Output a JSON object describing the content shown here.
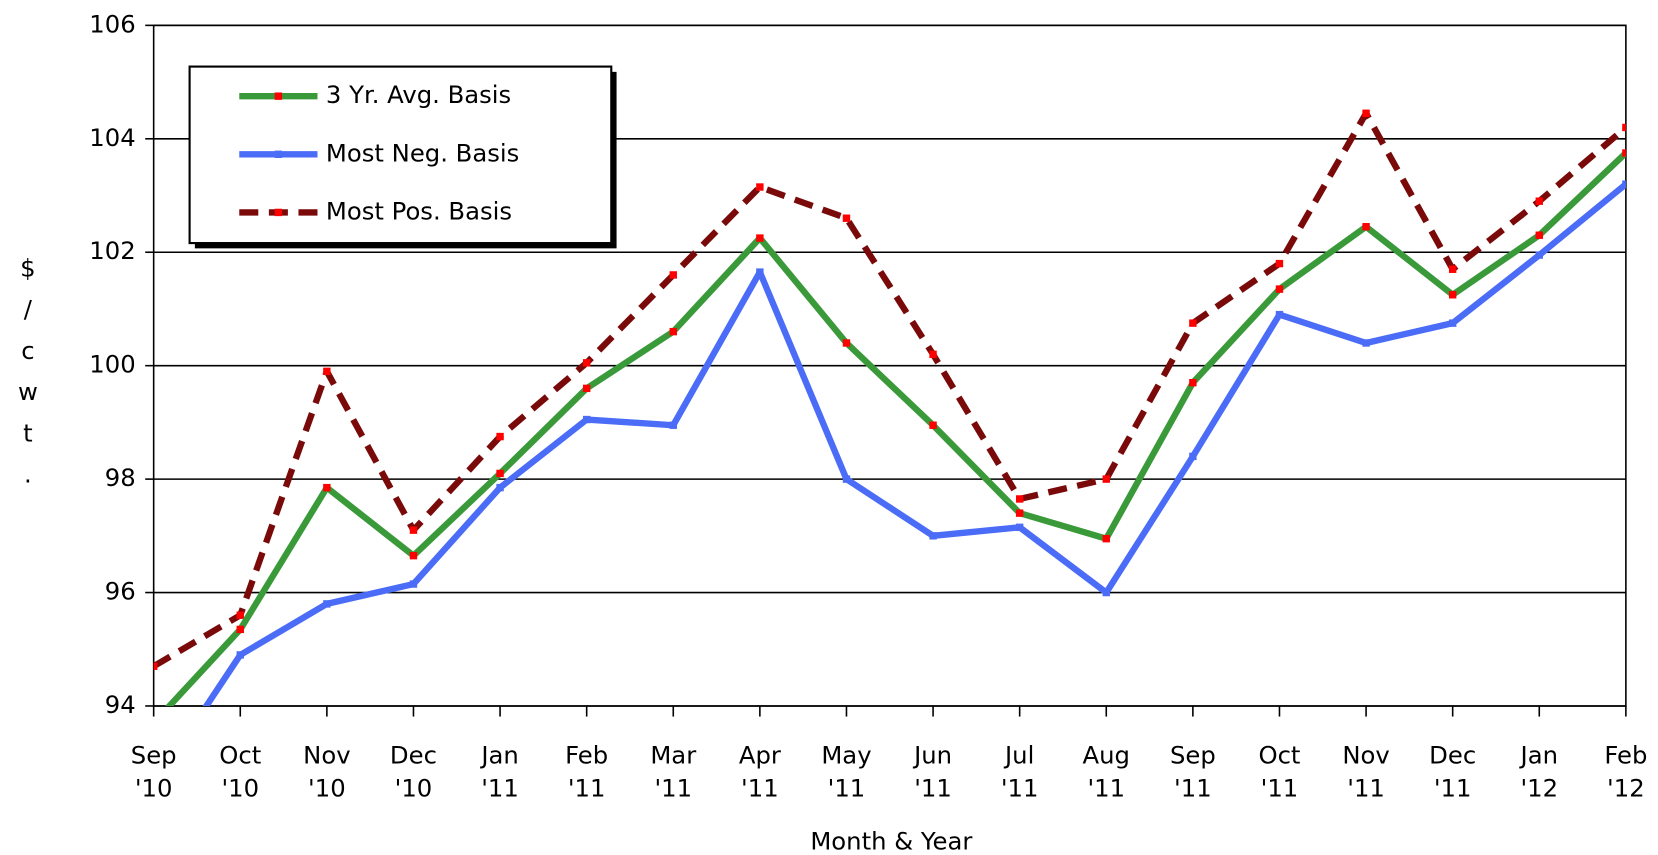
{
  "chart_data": {
    "type": "line",
    "x_label": "Month & Year",
    "y_label": "$/cwt.",
    "categories": [
      "Sep '10",
      "Oct '10",
      "Nov '10",
      "Dec '10",
      "Jan '11",
      "Feb '11",
      "Mar '11",
      "Apr '11",
      "May '11",
      "Jun '11",
      "Jul '11",
      "Aug '11",
      "Sep '11",
      "Oct '11",
      "Nov '11",
      "Dec '11",
      "Jan '12",
      "Feb '12"
    ],
    "series": [
      {
        "name": "3 Yr. Avg. Basis",
        "color": "#3a9a3a",
        "style": "solid",
        "markers": true,
        "values": [
          93.7,
          95.35,
          97.85,
          96.65,
          98.1,
          99.6,
          100.6,
          102.25,
          100.4,
          98.95,
          97.4,
          96.95,
          99.7,
          101.35,
          102.45,
          101.25,
          102.3,
          103.75
        ]
      },
      {
        "name": "Most Neg. Basis",
        "color": "#4a6cf7",
        "style": "solid",
        "markers": false,
        "values": [
          92.6,
          94.9,
          95.8,
          96.15,
          97.85,
          99.05,
          98.95,
          101.65,
          98,
          97,
          97.15,
          96,
          98.4,
          100.9,
          100.4,
          100.75,
          101.95,
          103.2
        ]
      },
      {
        "name": "Most Pos. Basis",
        "color": "#7a0a0a",
        "style": "dashed",
        "markers": true,
        "values": [
          94.7,
          95.6,
          99.9,
          97.1,
          98.75,
          100.05,
          101.6,
          103.15,
          102.6,
          100.2,
          97.65,
          98,
          100.75,
          101.8,
          104.45,
          101.7,
          102.9,
          104.2
        ]
      }
    ],
    "marker_color": "#ff0000",
    "ylim": [
      94,
      106
    ],
    "yticks": [
      94,
      96,
      98,
      100,
      102,
      104,
      106
    ],
    "grid": true,
    "legend": "upper-left"
  }
}
